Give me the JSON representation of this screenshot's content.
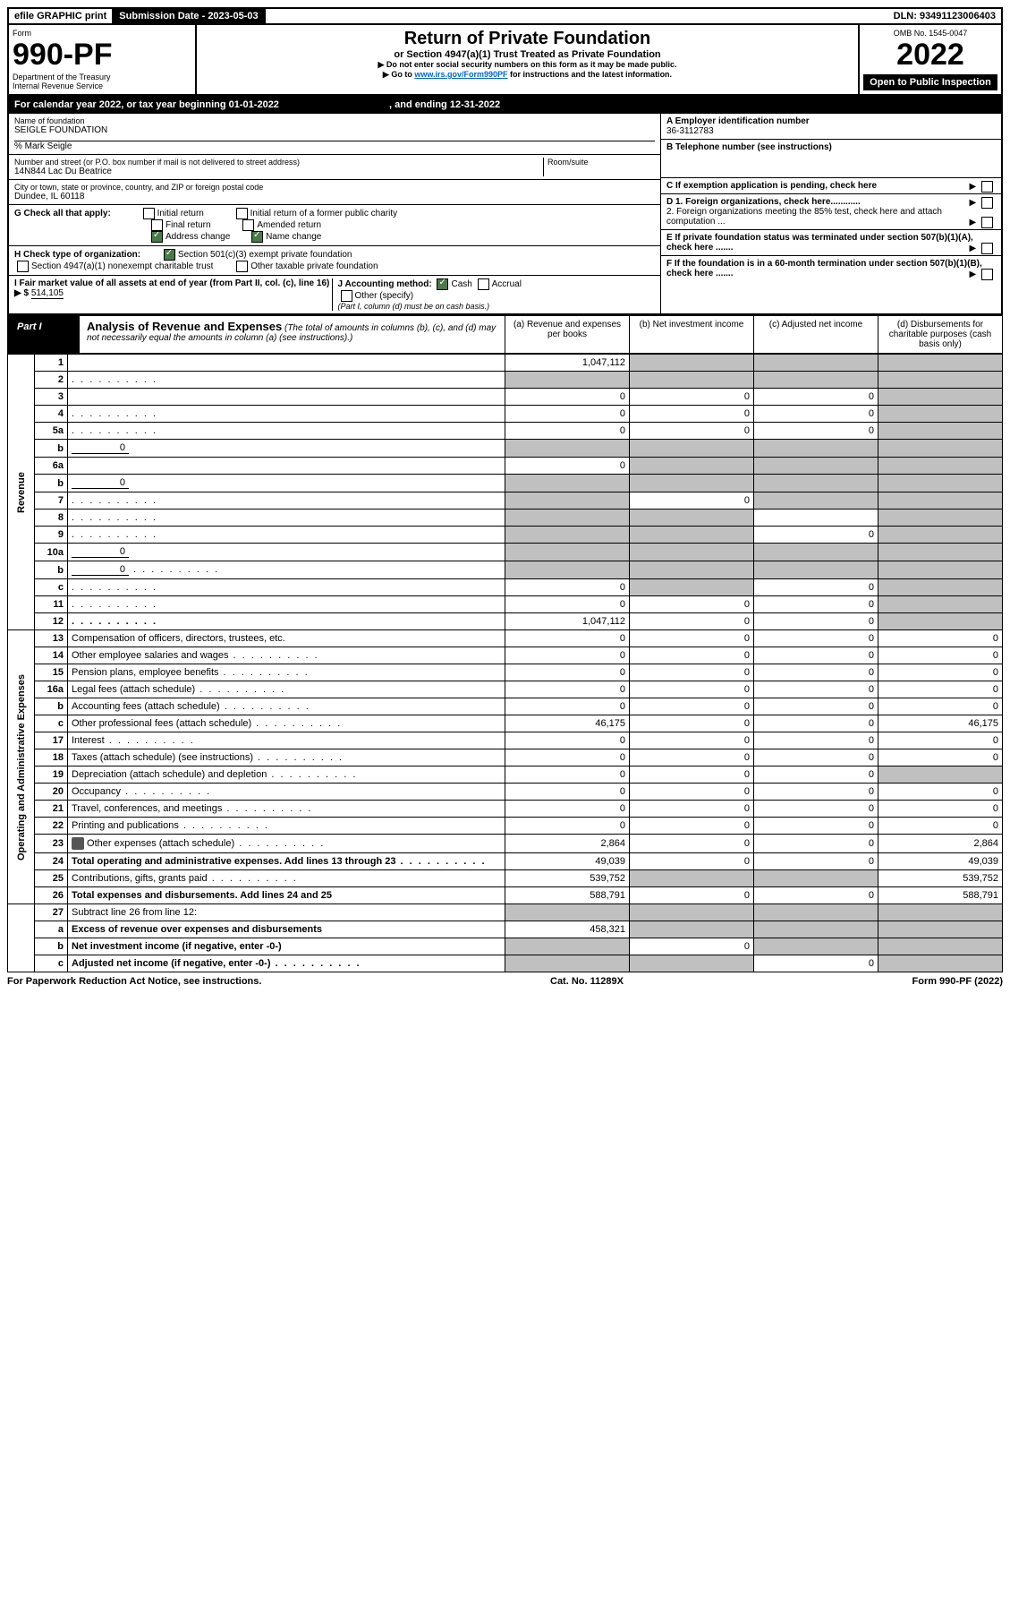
{
  "topbar": {
    "efile": "efile GRAPHIC print",
    "submission_label": "Submission Date - 2023-05-03",
    "dln_label": "DLN: 93491123006403"
  },
  "header": {
    "form_word": "Form",
    "form_number": "990-PF",
    "dept1": "Department of the Treasury",
    "dept2": "Internal Revenue Service",
    "title": "Return of Private Foundation",
    "subtitle": "or Section 4947(a)(1) Trust Treated as Private Foundation",
    "note1": "▶ Do not enter social security numbers on this form as it may be made public.",
    "note2_prefix": "▶ Go to ",
    "note2_link": "www.irs.gov/Form990PF",
    "note2_suffix": " for instructions and the latest information.",
    "omb": "OMB No. 1545-0047",
    "year": "2022",
    "inspection": "Open to Public Inspection"
  },
  "period": {
    "text_prefix": "For calendar year 2022, or tax year beginning ",
    "begin": "01-01-2022",
    "mid": ", and ending ",
    "end": "12-31-2022"
  },
  "entity": {
    "name_label": "Name of foundation",
    "name": "SEIGLE FOUNDATION",
    "care_of": "% Mark Seigle",
    "street_label": "Number and street (or P.O. box number if mail is not delivered to street address)",
    "street": "14N844 Lac Du Beatrice",
    "room_label": "Room/suite",
    "city_label": "City or town, state or province, country, and ZIP or foreign postal code",
    "city": "Dundee, IL  60118"
  },
  "right_info": {
    "A_label": "A Employer identification number",
    "A_value": "36-3112783",
    "B_label": "B Telephone number (see instructions)",
    "C_label": "C If exemption application is pending, check here",
    "D1_label": "D 1. Foreign organizations, check here............",
    "D2_label": "2. Foreign organizations meeting the 85% test, check here and attach computation ...",
    "E_label": "E  If private foundation status was terminated under section 507(b)(1)(A), check here .......",
    "F_label": "F  If the foundation is in a 60-month termination under section 507(b)(1)(B), check here .......",
    "G_label": "G Check all that apply:",
    "G_opts": {
      "initial": "Initial return",
      "initial_former": "Initial return of a former public charity",
      "final": "Final return",
      "amended": "Amended return",
      "address": "Address change",
      "name": "Name change"
    },
    "H_label": "H Check type of organization:",
    "H_opts": {
      "c3": "Section 501(c)(3) exempt private foundation",
      "4947": "Section 4947(a)(1) nonexempt charitable trust",
      "other_tax": "Other taxable private foundation"
    },
    "I_label": "I Fair market value of all assets at end of year (from Part II, col. (c), line 16) ▶ $",
    "I_value": "514,105",
    "J_label": "J Accounting method:",
    "J_opts": {
      "cash": "Cash",
      "accrual": "Accrual",
      "other": "Other (specify)"
    },
    "J_note": "(Part I, column (d) must be on cash basis.)"
  },
  "part1": {
    "label": "Part I",
    "title": "Analysis of Revenue and Expenses",
    "title_note": "(The total of amounts in columns (b), (c), and (d) may not necessarily equal the amounts in column (a) (see instructions).)",
    "col_a": "(a)  Revenue and expenses per books",
    "col_b": "(b)  Net investment income",
    "col_c": "(c)  Adjusted net income",
    "col_d": "(d)  Disbursements for charitable purposes (cash basis only)"
  },
  "side_labels": {
    "revenue": "Revenue",
    "expenses": "Operating and Administrative Expenses"
  },
  "rows": [
    {
      "n": "1",
      "d": "",
      "a": "1,047,112",
      "b": "",
      "c": "",
      "sb": true,
      "sc": true,
      "sd": true
    },
    {
      "n": "2",
      "d": "",
      "a": "",
      "b": "",
      "c": "",
      "sa": true,
      "sb": true,
      "sc": true,
      "sd": true,
      "dots": true
    },
    {
      "n": "3",
      "d": "",
      "a": "0",
      "b": "0",
      "c": "0",
      "sd": true
    },
    {
      "n": "4",
      "d": "",
      "a": "0",
      "b": "0",
      "c": "0",
      "sd": true,
      "dots": true
    },
    {
      "n": "5a",
      "d": "",
      "a": "0",
      "b": "0",
      "c": "0",
      "sd": true,
      "dots": true
    },
    {
      "n": "b",
      "d": "",
      "inline": "0",
      "a": "",
      "b": "",
      "c": "",
      "sa": true,
      "sb": true,
      "sc": true,
      "sd": true
    },
    {
      "n": "6a",
      "d": "",
      "a": "0",
      "b": "",
      "c": "",
      "sb": true,
      "sc": true,
      "sd": true
    },
    {
      "n": "b",
      "d": "",
      "inline": "0",
      "a": "",
      "b": "",
      "c": "",
      "sa": true,
      "sb": true,
      "sc": true,
      "sd": true
    },
    {
      "n": "7",
      "d": "",
      "a": "",
      "b": "0",
      "c": "",
      "sa": true,
      "sc": true,
      "sd": true,
      "dots": true
    },
    {
      "n": "8",
      "d": "",
      "a": "",
      "b": "",
      "c": "",
      "sa": true,
      "sb": true,
      "sd": true,
      "dots": true
    },
    {
      "n": "9",
      "d": "",
      "a": "",
      "b": "",
      "c": "0",
      "sa": true,
      "sb": true,
      "sd": true,
      "dots": true
    },
    {
      "n": "10a",
      "d": "",
      "inline": "0",
      "a": "",
      "b": "",
      "c": "",
      "sa": true,
      "sb": true,
      "sc": true,
      "sd": true
    },
    {
      "n": "b",
      "d": "",
      "inline": "0",
      "a": "",
      "b": "",
      "c": "",
      "sa": true,
      "sb": true,
      "sc": true,
      "sd": true,
      "dots": true
    },
    {
      "n": "c",
      "d": "",
      "a": "0",
      "b": "",
      "c": "0",
      "sb": true,
      "sd": true,
      "dots": true
    },
    {
      "n": "11",
      "d": "",
      "a": "0",
      "b": "0",
      "c": "0",
      "sd": true,
      "dots": true
    },
    {
      "n": "12",
      "d": "",
      "a": "1,047,112",
      "b": "0",
      "c": "0",
      "sd": true,
      "bold": true,
      "dots": true
    }
  ],
  "exp_rows": [
    {
      "n": "13",
      "d": "Compensation of officers, directors, trustees, etc.",
      "a": "0",
      "b": "0",
      "c": "0",
      "dd": "0"
    },
    {
      "n": "14",
      "d": "Other employee salaries and wages",
      "a": "0",
      "b": "0",
      "c": "0",
      "dd": "0",
      "dots": true
    },
    {
      "n": "15",
      "d": "Pension plans, employee benefits",
      "a": "0",
      "b": "0",
      "c": "0",
      "dd": "0",
      "dots": true
    },
    {
      "n": "16a",
      "d": "Legal fees (attach schedule)",
      "a": "0",
      "b": "0",
      "c": "0",
      "dd": "0",
      "dots": true
    },
    {
      "n": "b",
      "d": "Accounting fees (attach schedule)",
      "a": "0",
      "b": "0",
      "c": "0",
      "dd": "0",
      "dots": true
    },
    {
      "n": "c",
      "d": "Other professional fees (attach schedule)",
      "a": "46,175",
      "b": "0",
      "c": "0",
      "dd": "46,175",
      "dots": true
    },
    {
      "n": "17",
      "d": "Interest",
      "a": "0",
      "b": "0",
      "c": "0",
      "dd": "0",
      "dots": true
    },
    {
      "n": "18",
      "d": "Taxes (attach schedule) (see instructions)",
      "a": "0",
      "b": "0",
      "c": "0",
      "dd": "0",
      "dots": true
    },
    {
      "n": "19",
      "d": "Depreciation (attach schedule) and depletion",
      "a": "0",
      "b": "0",
      "c": "0",
      "dd": "",
      "sd": true,
      "dots": true
    },
    {
      "n": "20",
      "d": "Occupancy",
      "a": "0",
      "b": "0",
      "c": "0",
      "dd": "0",
      "dots": true
    },
    {
      "n": "21",
      "d": "Travel, conferences, and meetings",
      "a": "0",
      "b": "0",
      "c": "0",
      "dd": "0",
      "dots": true
    },
    {
      "n": "22",
      "d": "Printing and publications",
      "a": "0",
      "b": "0",
      "c": "0",
      "dd": "0",
      "dots": true
    },
    {
      "n": "23",
      "d": "Other expenses (attach schedule)",
      "a": "2,864",
      "b": "0",
      "c": "0",
      "dd": "2,864",
      "icon": true,
      "dots": true
    },
    {
      "n": "24",
      "d": "Total operating and administrative expenses. Add lines 13 through 23",
      "a": "49,039",
      "b": "0",
      "c": "0",
      "dd": "49,039",
      "bold": true,
      "dots": true
    },
    {
      "n": "25",
      "d": "Contributions, gifts, grants paid",
      "a": "539,752",
      "b": "",
      "c": "",
      "dd": "539,752",
      "sb": true,
      "sc": true,
      "dots": true
    },
    {
      "n": "26",
      "d": "Total expenses and disbursements. Add lines 24 and 25",
      "a": "588,791",
      "b": "0",
      "c": "0",
      "dd": "588,791",
      "bold": true
    }
  ],
  "bottom_rows": [
    {
      "n": "27",
      "d": "Subtract line 26 from line 12:",
      "a": "",
      "b": "",
      "c": "",
      "dd": "",
      "sa": true,
      "sb": true,
      "sc": true,
      "sd": true
    },
    {
      "n": "a",
      "d": "Excess of revenue over expenses and disbursements",
      "a": "458,321",
      "b": "",
      "c": "",
      "dd": "",
      "sb": true,
      "sc": true,
      "sd": true,
      "bold": true
    },
    {
      "n": "b",
      "d": "Net investment income (if negative, enter -0-)",
      "a": "",
      "b": "0",
      "c": "",
      "dd": "",
      "sa": true,
      "sc": true,
      "sd": true,
      "bold": true
    },
    {
      "n": "c",
      "d": "Adjusted net income (if negative, enter -0-)",
      "a": "",
      "b": "",
      "c": "0",
      "dd": "",
      "sa": true,
      "sb": true,
      "sd": true,
      "bold": true,
      "dots": true
    }
  ],
  "footer": {
    "left": "For Paperwork Reduction Act Notice, see instructions.",
    "center": "Cat. No. 11289X",
    "right": "Form 990-PF (2022)"
  }
}
